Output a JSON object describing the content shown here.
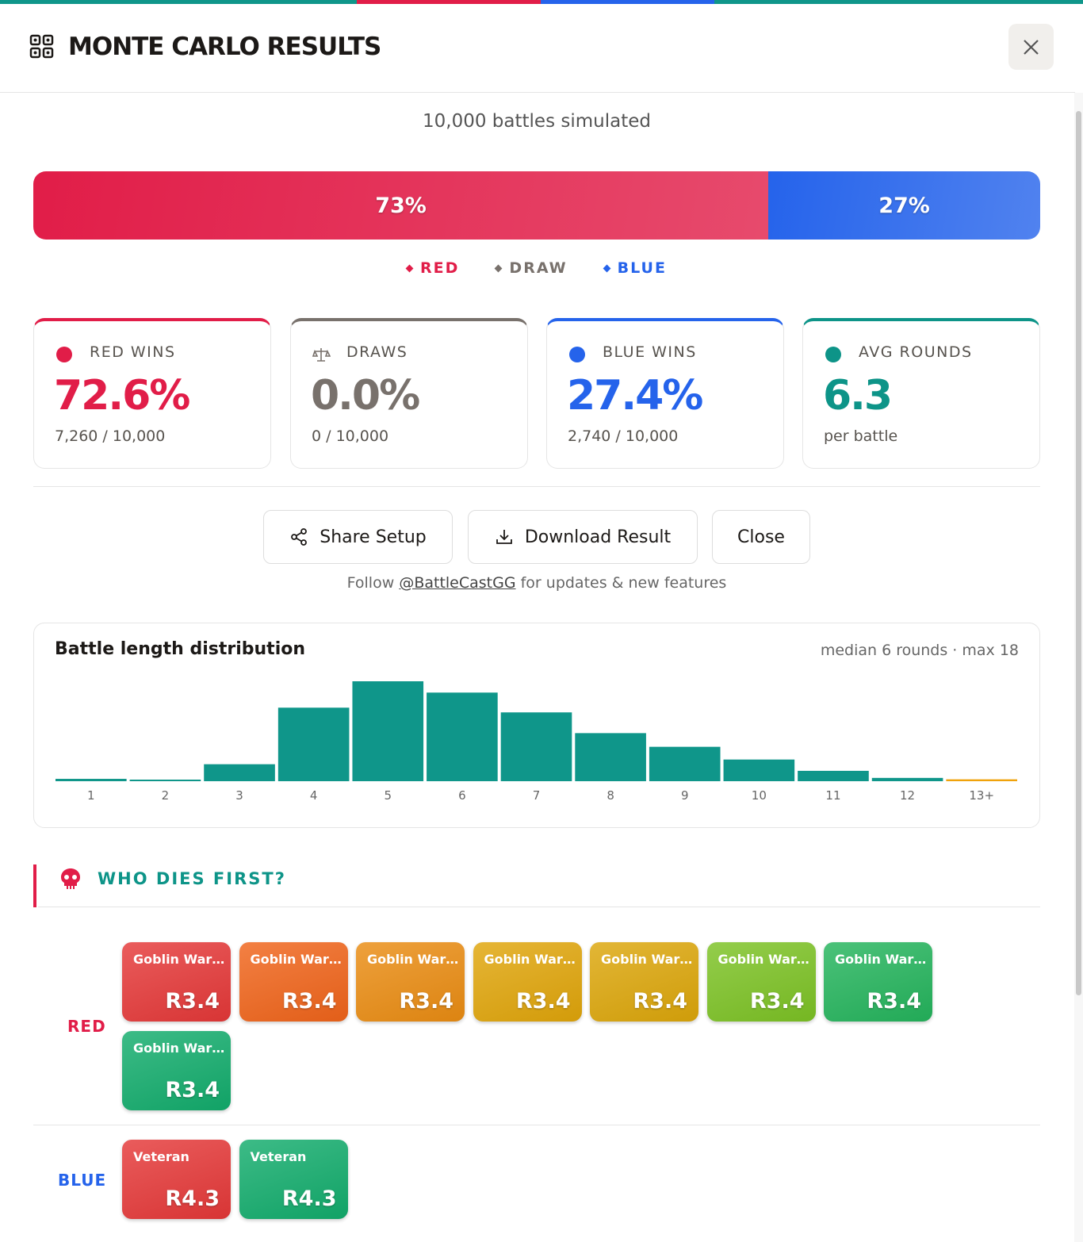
{
  "header": {
    "title": "MONTE CARLO RESULTS"
  },
  "summary": "10,000 battles simulated",
  "outcome_bar": {
    "values": [
      73,
      27
    ],
    "value_labels": [
      "73%",
      "27%"
    ],
    "colors": [
      "#e11d48",
      "#2563eb"
    ]
  },
  "legend": [
    {
      "label": "RED",
      "color": "#e11d48"
    },
    {
      "label": "DRAW",
      "color": "#78716c"
    },
    {
      "label": "BLUE",
      "color": "#2563eb"
    }
  ],
  "stats": [
    {
      "label": "RED WINS",
      "value": "72.6%",
      "detail": "7,260 / 10,000",
      "color": "#e11d48"
    },
    {
      "label": "DRAWS",
      "value": "0.0%",
      "detail": "0 / 10,000",
      "color": "#78716c"
    },
    {
      "label": "BLUE WINS",
      "value": "27.4%",
      "detail": "2,740 / 10,000",
      "color": "#2563eb"
    },
    {
      "label": "AVG ROUNDS",
      "value": "6.3",
      "detail": "per battle",
      "color": "#0d9488"
    }
  ],
  "buttons": [
    "Share Setup",
    "Download Result",
    "Close"
  ],
  "follow": {
    "before": "Follow",
    "handle": "@BattleCastGG",
    "after": "for updates & new features"
  },
  "chart_data": {
    "type": "bar",
    "title": "Battle length distribution",
    "subtitle": "median 6 rounds · max 18",
    "categories": [
      "1",
      "2",
      "3",
      "4",
      "5",
      "6",
      "7",
      "8",
      "9",
      "10",
      "11",
      "12",
      "13+"
    ],
    "values": [
      50,
      30,
      360,
      1560,
      2120,
      1880,
      1460,
      1020,
      730,
      460,
      220,
      70,
      40
    ],
    "colors": [
      "#0f968a",
      "#0f968a",
      "#0f968a",
      "#0f968a",
      "#0f968a",
      "#0f968a",
      "#0f968a",
      "#0f968a",
      "#0f968a",
      "#0f968a",
      "#0f968a",
      "#0f968a",
      "#f0a20b"
    ]
  },
  "who_dies_first": {
    "title": "WHO DIES FIRST?",
    "groups": [
      {
        "team": "RED",
        "color": "#e11d48",
        "units": [
          {
            "name": "Goblin War…",
            "round": "R3.4",
            "color": "#e53838"
          },
          {
            "name": "Goblin War…",
            "round": "R3.4",
            "color": "#f0641a"
          },
          {
            "name": "Goblin War…",
            "round": "R3.4",
            "color": "#ea8c12"
          },
          {
            "name": "Goblin War…",
            "round": "R3.4",
            "color": "#e0a50a"
          },
          {
            "name": "Goblin War…",
            "round": "R3.4",
            "color": "#dca60a"
          },
          {
            "name": "Goblin War…",
            "round": "R3.4",
            "color": "#7cc224"
          },
          {
            "name": "Goblin War…",
            "round": "R3.4",
            "color": "#24b45c"
          },
          {
            "name": "Goblin War…",
            "round": "R3.4",
            "color": "#12ac6c"
          }
        ]
      },
      {
        "team": "BLUE",
        "color": "#2563eb",
        "units": [
          {
            "name": "Veteran",
            "round": "R4.3",
            "color": "#e53838"
          },
          {
            "name": "Veteran",
            "round": "R4.3",
            "color": "#12ac6c"
          }
        ]
      }
    ]
  }
}
